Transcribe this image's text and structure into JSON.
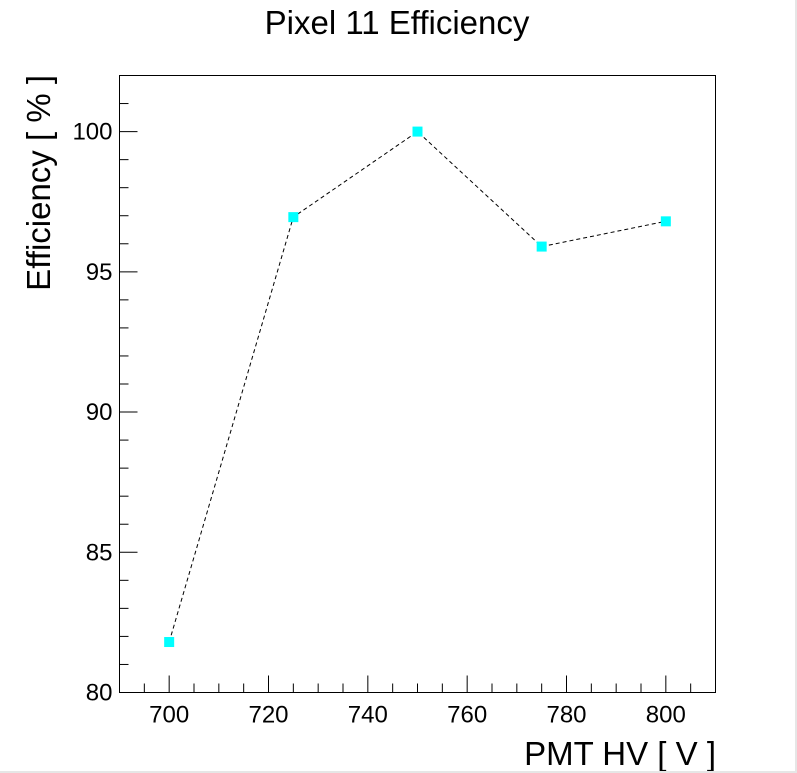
{
  "chart_data": {
    "type": "scatter",
    "title": "Pixel 11 Efficiency",
    "xlabel": "PMT HV [ V ]",
    "ylabel": "Efficiency [ % ]",
    "xlim": [
      690,
      810
    ],
    "ylim": [
      80,
      102
    ],
    "x_ticks": [
      700,
      720,
      740,
      760,
      780,
      800
    ],
    "y_ticks": [
      80,
      85,
      90,
      95,
      100
    ],
    "x_minor_step": 5,
    "y_minor_step": 1,
    "grid": false,
    "legend": "none",
    "marker": "square",
    "marker_color": "#00ffff",
    "line_style": "dashed",
    "line_color": "#000000",
    "series": [
      {
        "x": [
          700,
          725,
          750,
          775,
          800
        ],
        "y": [
          81.8,
          96.95,
          100.0,
          95.9,
          96.8
        ]
      }
    ]
  }
}
